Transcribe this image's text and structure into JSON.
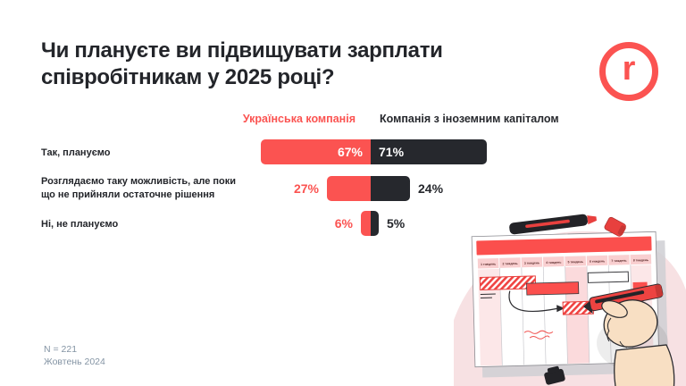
{
  "title": "Чи плануєте ви підвищувати зарплати\nспівробітникам у 2025 році?",
  "footer": {
    "sample_size": "N = 221",
    "date": "Жовтень 2024"
  },
  "logo": {
    "letter": "r",
    "color": "#FB5351"
  },
  "colors": {
    "red": "#FB5351",
    "dark": "#26282D",
    "muted": "#8494A4"
  },
  "chart_data": {
    "type": "bar",
    "orientation": "horizontal-diverging",
    "categories": [
      "Так, плануємо",
      "Розглядаємо таку можливість, але поки\nщо не прийняли остаточне рішення",
      "Ні, не плануємо"
    ],
    "series": [
      {
        "name": "Українська компанія",
        "color": "#FB5351",
        "values": [
          67,
          27,
          6
        ]
      },
      {
        "name": "Компанія з іноземним капіталом",
        "color": "#26282D",
        "values": [
          71,
          24,
          5
        ]
      }
    ],
    "value_suffix": "%",
    "value_label_placement": [
      "inside",
      "outside",
      "outside"
    ],
    "xlim": [
      0,
      100
    ],
    "legend_position": "top",
    "grid": false
  },
  "illustration": {
    "description": "hand with red marker drawing on a weekly gantt planner",
    "week_labels": [
      "1 тиждень",
      "2 тиждень",
      "3 тиждень",
      "4 тиждень",
      "5 тиждень",
      "6 тиждень",
      "7 тиждень",
      "8 тиждень"
    ]
  }
}
